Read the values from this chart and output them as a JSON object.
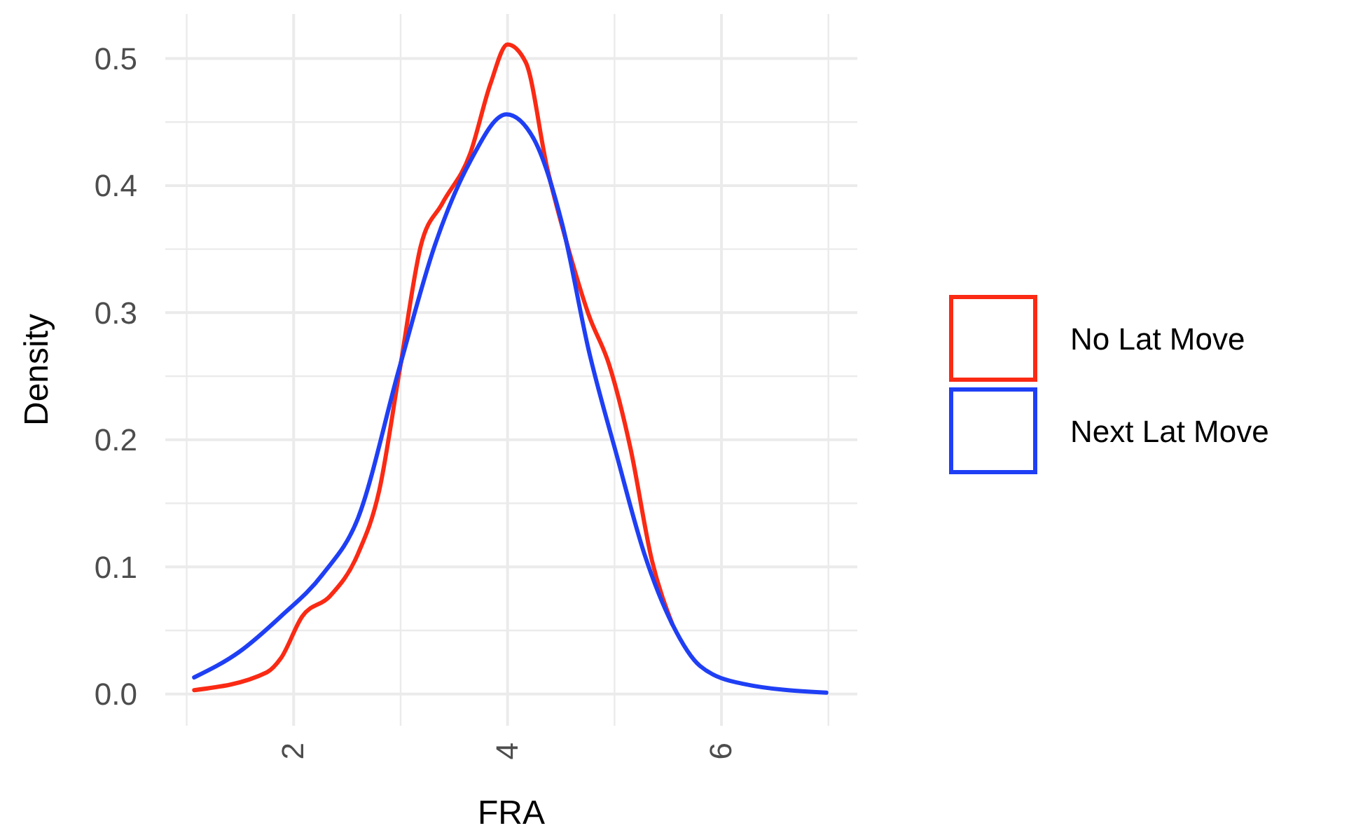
{
  "chart_data": {
    "type": "line",
    "xlabel": "FRA",
    "ylabel": "Density",
    "xlim": [
      0.8,
      7.27
    ],
    "ylim": [
      -0.025,
      0.535
    ],
    "xticks": [
      {
        "value": 1,
        "label": null
      },
      2,
      {
        "value": 3,
        "label": null
      },
      4,
      {
        "value": 5,
        "label": null
      },
      6,
      {
        "value": 7,
        "label": null
      }
    ],
    "yticks": [
      "0.0",
      {
        "value": 0.05,
        "label": null
      },
      {
        "value": 0.1,
        "label": "0.1"
      },
      {
        "value": 0.15,
        "label": null
      },
      {
        "value": 0.2,
        "label": "0.2"
      },
      {
        "value": 0.25,
        "label": null
      },
      {
        "value": 0.3,
        "label": "0.3"
      },
      {
        "value": 0.35,
        "label": null
      },
      {
        "value": 0.4,
        "label": "0.4"
      },
      {
        "value": 0.45,
        "label": null
      },
      {
        "value": 0.5,
        "label": "0.5"
      }
    ],
    "grid": true,
    "legend": "right",
    "marker": "none",
    "line_style": "solid",
    "series": [
      {
        "name": "No Lat Move",
        "color": "#fa2a14",
        "x": [
          1.07,
          1.75,
          1.88,
          2.08,
          2.34,
          2.6,
          2.8,
          2.99,
          3.19,
          3.39,
          3.65,
          3.84,
          4.0,
          4.17,
          4.37,
          4.56,
          4.76,
          4.95,
          5.15,
          5.35,
          5.54
        ],
        "values": [
          0.003,
          0.017,
          0.028,
          0.061,
          0.077,
          0.11,
          0.16,
          0.254,
          0.353,
          0.386,
          0.425,
          0.48,
          0.511,
          0.497,
          0.414,
          0.353,
          0.298,
          0.259,
          0.193,
          0.105,
          0.055
        ]
      },
      {
        "name": "Next Lat Move",
        "color": "#1f3ff5",
        "x": [
          1.07,
          1.49,
          1.88,
          2.27,
          2.6,
          2.99,
          3.32,
          3.65,
          3.99,
          4.25,
          4.51,
          4.76,
          5.02,
          5.28,
          5.54,
          5.8,
          6.2,
          6.98
        ],
        "values": [
          0.013,
          0.033,
          0.061,
          0.094,
          0.138,
          0.257,
          0.353,
          0.419,
          0.456,
          0.436,
          0.37,
          0.27,
          0.188,
          0.11,
          0.055,
          0.022,
          0.008,
          0.001
        ]
      }
    ]
  }
}
